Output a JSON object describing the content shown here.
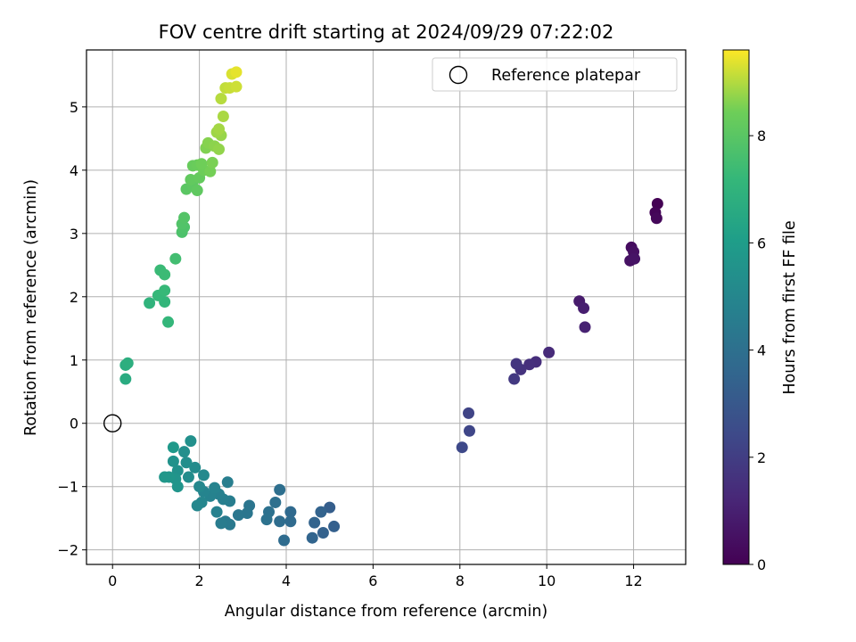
{
  "chart_data": {
    "type": "scatter",
    "title": "FOV centre drift starting at 2024/09/29 07:22:02",
    "xlabel": "Angular distance from reference (arcmin)",
    "ylabel": "Rotation from reference (arcmin)",
    "xlim": [
      -0.6,
      13.2
    ],
    "ylim": [
      -2.23,
      5.9
    ],
    "xticks": [
      0,
      2,
      4,
      6,
      8,
      10,
      12
    ],
    "yticks": [
      -2,
      -1,
      0,
      1,
      2,
      3,
      4,
      5
    ],
    "grid": true,
    "legend": {
      "placement": "upper-right",
      "entries": [
        "Reference platepar"
      ]
    },
    "reference_point": {
      "x": 0,
      "y": 0
    },
    "colorbar": {
      "label": "Hours from first FF file",
      "range": [
        0,
        9.6
      ],
      "ticks": [
        0,
        2,
        4,
        6,
        8
      ],
      "colormap": "viridis"
    },
    "series": [
      {
        "colormap": "viridis",
        "points": [
          [
            12.55,
            3.47,
            0.0
          ],
          [
            12.5,
            3.33,
            0.1
          ],
          [
            12.53,
            3.24,
            0.2
          ],
          [
            11.95,
            2.78,
            0.35
          ],
          [
            12.0,
            2.71,
            0.45
          ],
          [
            11.92,
            2.57,
            0.5
          ],
          [
            12.02,
            2.6,
            0.55
          ],
          [
            10.75,
            1.93,
            0.8
          ],
          [
            10.85,
            1.82,
            0.9
          ],
          [
            10.88,
            1.52,
            1.0
          ],
          [
            10.05,
            1.12,
            1.3
          ],
          [
            9.75,
            0.97,
            1.4
          ],
          [
            9.6,
            0.93,
            1.5
          ],
          [
            9.4,
            0.85,
            1.6
          ],
          [
            9.3,
            0.94,
            1.7
          ],
          [
            9.25,
            0.7,
            1.8
          ],
          [
            8.2,
            0.16,
            2.2
          ],
          [
            8.22,
            -0.12,
            2.3
          ],
          [
            8.05,
            -0.38,
            2.4
          ],
          [
            5.0,
            -1.33,
            3.2
          ],
          [
            5.1,
            -1.63,
            3.3
          ],
          [
            4.85,
            -1.73,
            3.35
          ],
          [
            4.8,
            -1.4,
            3.4
          ],
          [
            4.65,
            -1.57,
            3.45
          ],
          [
            4.6,
            -1.81,
            3.5
          ],
          [
            4.1,
            -1.4,
            3.7
          ],
          [
            4.1,
            -1.55,
            3.75
          ],
          [
            3.95,
            -1.85,
            3.8
          ],
          [
            3.85,
            -1.55,
            3.85
          ],
          [
            3.85,
            -1.05,
            3.9
          ],
          [
            3.75,
            -1.25,
            3.95
          ],
          [
            3.6,
            -1.4,
            4.0
          ],
          [
            3.55,
            -1.52,
            4.05
          ],
          [
            3.15,
            -1.3,
            4.2
          ],
          [
            3.1,
            -1.42,
            4.25
          ],
          [
            2.9,
            -1.45,
            4.3
          ],
          [
            2.7,
            -1.6,
            4.4
          ],
          [
            2.6,
            -1.55,
            4.45
          ],
          [
            2.5,
            -1.58,
            4.5
          ],
          [
            2.7,
            -1.23,
            4.55
          ],
          [
            2.65,
            -0.93,
            4.6
          ],
          [
            2.55,
            -1.2,
            4.65
          ],
          [
            2.45,
            -1.12,
            4.7
          ],
          [
            2.4,
            -1.4,
            4.75
          ],
          [
            2.25,
            -1.15,
            4.8
          ],
          [
            2.35,
            -1.02,
            4.85
          ],
          [
            2.1,
            -1.08,
            4.9
          ],
          [
            2.05,
            -1.25,
            4.95
          ],
          [
            1.95,
            -1.3,
            5.0
          ],
          [
            2.0,
            -1.0,
            5.05
          ],
          [
            2.1,
            -0.82,
            5.1
          ],
          [
            1.9,
            -0.7,
            5.2
          ],
          [
            1.75,
            -0.85,
            5.25
          ],
          [
            1.7,
            -0.62,
            5.3
          ],
          [
            1.65,
            -0.45,
            5.35
          ],
          [
            1.8,
            -0.28,
            5.4
          ],
          [
            1.5,
            -0.75,
            5.45
          ],
          [
            1.4,
            -0.6,
            5.5
          ],
          [
            1.45,
            -0.88,
            5.55
          ],
          [
            1.5,
            -1.0,
            5.6
          ],
          [
            1.3,
            -0.85,
            5.65
          ],
          [
            1.2,
            -0.85,
            5.7
          ],
          [
            1.4,
            -0.38,
            5.8
          ],
          [
            0.3,
            0.7,
            6.6
          ],
          [
            0.3,
            0.92,
            6.7
          ],
          [
            0.35,
            0.95,
            6.75
          ],
          [
            0.85,
            1.9,
            7.0
          ],
          [
            1.2,
            1.92,
            7.1
          ],
          [
            1.28,
            1.6,
            7.15
          ],
          [
            1.05,
            2.02,
            7.2
          ],
          [
            1.2,
            2.1,
            7.25
          ],
          [
            1.1,
            2.42,
            7.3
          ],
          [
            1.2,
            2.35,
            7.35
          ],
          [
            1.45,
            2.6,
            7.5
          ],
          [
            1.6,
            3.02,
            7.7
          ],
          [
            1.65,
            3.1,
            7.75
          ],
          [
            1.6,
            3.15,
            7.8
          ],
          [
            1.65,
            3.25,
            7.85
          ],
          [
            1.7,
            3.7,
            8.0
          ],
          [
            1.85,
            3.75,
            8.05
          ],
          [
            1.95,
            3.68,
            8.1
          ],
          [
            1.8,
            3.85,
            8.15
          ],
          [
            2.0,
            3.88,
            8.2
          ],
          [
            1.85,
            4.07,
            8.25
          ],
          [
            1.95,
            4.08,
            8.3
          ],
          [
            2.1,
            4.0,
            8.35
          ],
          [
            2.05,
            4.1,
            8.4
          ],
          [
            2.25,
            3.98,
            8.45
          ],
          [
            2.3,
            4.12,
            8.5
          ],
          [
            2.15,
            4.35,
            8.55
          ],
          [
            2.2,
            4.43,
            8.6
          ],
          [
            2.35,
            4.38,
            8.65
          ],
          [
            2.45,
            4.33,
            8.7
          ],
          [
            2.5,
            4.55,
            8.75
          ],
          [
            2.4,
            4.6,
            8.8
          ],
          [
            2.45,
            4.65,
            8.85
          ],
          [
            2.55,
            4.85,
            8.9
          ],
          [
            2.5,
            5.13,
            9.0
          ],
          [
            2.6,
            5.3,
            9.1
          ],
          [
            2.7,
            5.3,
            9.15
          ],
          [
            2.85,
            5.32,
            9.2
          ],
          [
            2.75,
            5.52,
            9.3
          ],
          [
            2.85,
            5.55,
            9.4
          ]
        ]
      }
    ]
  }
}
